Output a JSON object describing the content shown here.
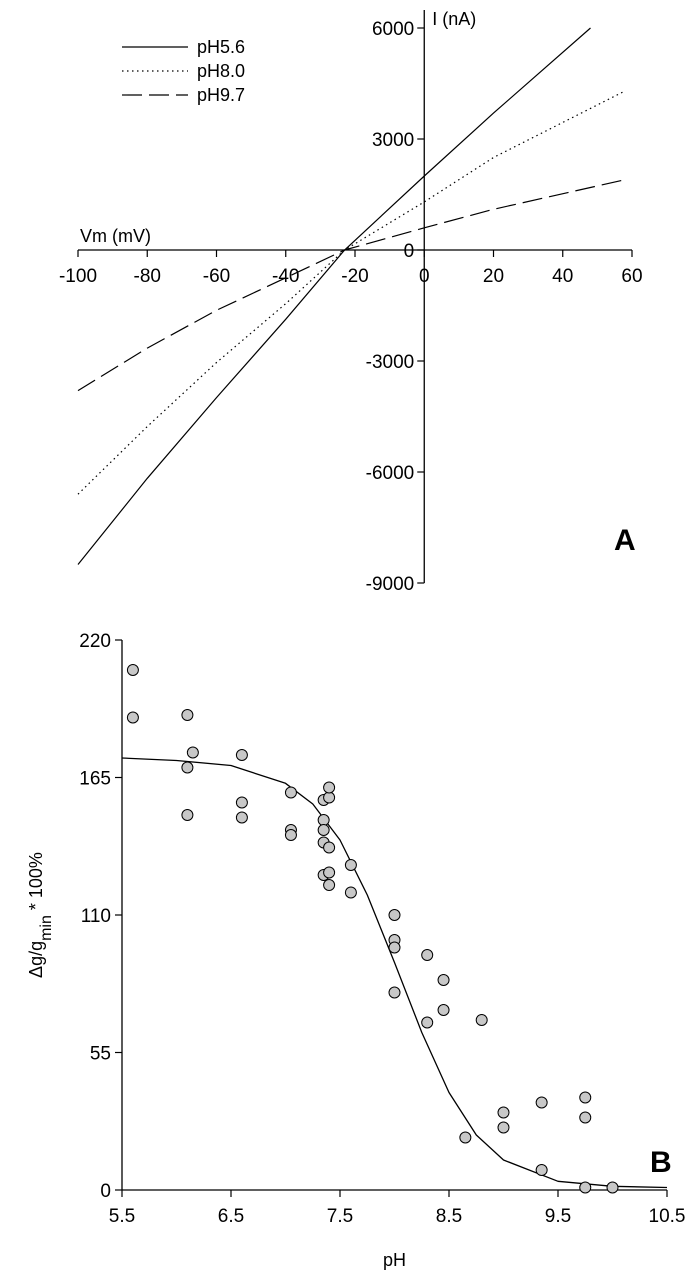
{
  "chart_data": [
    {
      "panel": "A",
      "type": "line",
      "xlabel": "Vm (mV)",
      "ylabel": "I (nA)",
      "xlim": [
        -100,
        60
      ],
      "ylim": [
        -9000,
        6000
      ],
      "xticks": [
        -100,
        -80,
        -60,
        -40,
        -20,
        0,
        20,
        40,
        60
      ],
      "yticks": [
        6000,
        3000,
        0,
        -3000,
        -6000,
        -9000
      ],
      "legend_position": "top-left",
      "series": [
        {
          "name": "pH5.6",
          "line_style": "solid",
          "x": [
            -100,
            -80,
            -60,
            -40,
            -23,
            0,
            20,
            48
          ],
          "y": [
            -8500,
            -6170,
            -3990,
            -1870,
            0,
            2000,
            3700,
            6000
          ]
        },
        {
          "name": "pH8.0",
          "line_style": "dotted",
          "x": [
            -100,
            -80,
            -60,
            -40,
            -23,
            0,
            20,
            58
          ],
          "y": [
            -6600,
            -4770,
            -3040,
            -1450,
            0,
            1300,
            2500,
            4300
          ]
        },
        {
          "name": "pH9.7",
          "line_style": "dashed",
          "x": [
            -100,
            -80,
            -60,
            -40,
            -23,
            0,
            20,
            58
          ],
          "y": [
            -3800,
            -2650,
            -1630,
            -750,
            0,
            600,
            1100,
            1900
          ]
        }
      ],
      "panel_label": "A"
    },
    {
      "panel": "B",
      "type": "scatter",
      "xlabel": "pH",
      "ylabel_parts": [
        "Δg/g",
        "min",
        " * 100%"
      ],
      "xlim": [
        5.5,
        10.5
      ],
      "ylim": [
        0,
        220
      ],
      "xticks": [
        "5.5",
        "6.5",
        "7.5",
        "8.5",
        "9.5",
        "10.5"
      ],
      "yticks": [
        "0",
        "55",
        "110",
        "165",
        "220"
      ],
      "points": [
        [
          5.6,
          208
        ],
        [
          5.6,
          189
        ],
        [
          6.1,
          190
        ],
        [
          6.15,
          175
        ],
        [
          6.1,
          169
        ],
        [
          6.1,
          150
        ],
        [
          6.6,
          174
        ],
        [
          6.6,
          155
        ],
        [
          6.6,
          149
        ],
        [
          7.05,
          159
        ],
        [
          7.05,
          144
        ],
        [
          7.05,
          142
        ],
        [
          7.35,
          156
        ],
        [
          7.4,
          157
        ],
        [
          7.4,
          161
        ],
        [
          7.35,
          148
        ],
        [
          7.35,
          144
        ],
        [
          7.35,
          139
        ],
        [
          7.4,
          137
        ],
        [
          7.35,
          126
        ],
        [
          7.4,
          127
        ],
        [
          7.4,
          122
        ],
        [
          7.6,
          130
        ],
        [
          7.6,
          119
        ],
        [
          8.0,
          110
        ],
        [
          8.0,
          100
        ],
        [
          8.0,
          97
        ],
        [
          8.0,
          79
        ],
        [
          8.3,
          94
        ],
        [
          8.45,
          84
        ],
        [
          8.45,
          72
        ],
        [
          8.3,
          67
        ],
        [
          8.8,
          68
        ],
        [
          8.65,
          21
        ],
        [
          9.0,
          31
        ],
        [
          9.0,
          25
        ],
        [
          9.35,
          35
        ],
        [
          9.35,
          8
        ],
        [
          9.75,
          37
        ],
        [
          9.75,
          29
        ],
        [
          9.75,
          1
        ],
        [
          10.0,
          1
        ]
      ],
      "fit_curve": {
        "x": [
          5.5,
          6.0,
          6.5,
          7.0,
          7.25,
          7.5,
          7.75,
          8.0,
          8.25,
          8.5,
          8.75,
          9.0,
          9.5,
          10.0,
          10.5
        ],
        "y": [
          172.8,
          171.8,
          169.8,
          162.7,
          154.4,
          140.0,
          118.0,
          91.0,
          63.0,
          39.0,
          22.0,
          12.0,
          3.5,
          1.5,
          1.0
        ]
      },
      "colors": {
        "marker_fill": "#c8c8c8"
      },
      "panel_label": "B"
    }
  ]
}
